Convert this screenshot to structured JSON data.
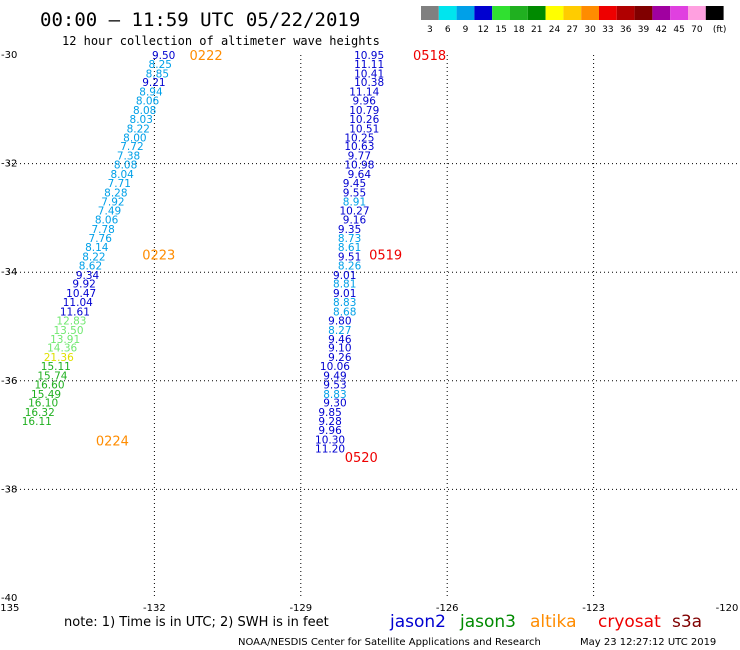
{
  "title": "00:00 — 11:59 UTC 05/22/2019",
  "subtitle": "12 hour collection of altimeter wave heights",
  "note": "note:  1) Time is in UTC; 2) SWH is in feet",
  "credit": "NOAA/NESDIS Center for Satellite Applications and Research",
  "timestamp": "May 23 12:27:12 UTC 2019",
  "unit_label": "(ft)",
  "color_scale": [
    {
      "label": "3",
      "color": "#808080"
    },
    {
      "label": "6",
      "color": "#00e5ee"
    },
    {
      "label": "9",
      "color": "#00a0e8"
    },
    {
      "label": "12",
      "color": "#0000d0"
    },
    {
      "label": "15",
      "color": "#30e030"
    },
    {
      "label": "18",
      "color": "#20b020"
    },
    {
      "label": "21",
      "color": "#008a00"
    },
    {
      "label": "24",
      "color": "#ffff00"
    },
    {
      "label": "27",
      "color": "#ffcc00"
    },
    {
      "label": "30",
      "color": "#ff8c00"
    },
    {
      "label": "33",
      "color": "#ee0000"
    },
    {
      "label": "36",
      "color": "#b00000"
    },
    {
      "label": "39",
      "color": "#800000"
    },
    {
      "label": "42",
      "color": "#a000a0"
    },
    {
      "label": "45",
      "color": "#e040e0"
    },
    {
      "label": "70",
      "color": "#ffa0e0"
    },
    {
      "label": "",
      "color": "#000000"
    }
  ],
  "satellites": [
    {
      "name": "jason2",
      "color": "#0000d0"
    },
    {
      "name": "jason3",
      "color": "#008a00"
    },
    {
      "name": "altika",
      "color": "#ff8c00"
    },
    {
      "name": "cryosat",
      "color": "#ee0000"
    },
    {
      "name": "s3a",
      "color": "#800000"
    }
  ],
  "chart_data": {
    "type": "scatter",
    "xlim": [
      -135,
      -120
    ],
    "ylim": [
      -40,
      -30
    ],
    "x_ticks": [
      -135,
      -132,
      -129,
      -126,
      -123,
      -120
    ],
    "y_ticks": [
      -30,
      -32,
      -34,
      -36,
      -38,
      -40
    ],
    "grid": true,
    "legend_placement": "bottom",
    "series": [
      {
        "name": "altika",
        "color": "#ff8c00",
        "time_labels": [
          {
            "text": "0222",
            "lon": -131.28,
            "lat": -30.0
          },
          {
            "text": "0223",
            "lon": -132.25,
            "lat": -33.67
          },
          {
            "text": "0224",
            "lon": -133.2,
            "lat": -37.1
          }
        ],
        "points": [
          {
            "lon": -131.81,
            "lat": -30.0,
            "swh": "9.50",
            "color": "#0000d0"
          },
          {
            "lon": -131.88,
            "lat": -30.17,
            "swh": "8.25",
            "color": "#00a0e8"
          },
          {
            "lon": -131.94,
            "lat": -30.34,
            "swh": "8.85",
            "color": "#00a0e8"
          },
          {
            "lon": -132.01,
            "lat": -30.5,
            "swh": "9.21",
            "color": "#0000d0"
          },
          {
            "lon": -132.07,
            "lat": -30.67,
            "swh": "8.94",
            "color": "#00a0e8"
          },
          {
            "lon": -132.14,
            "lat": -30.84,
            "swh": "8.06",
            "color": "#00a0e8"
          },
          {
            "lon": -132.2,
            "lat": -31.01,
            "swh": "8.08",
            "color": "#00a0e8"
          },
          {
            "lon": -132.27,
            "lat": -31.18,
            "swh": "8.03",
            "color": "#00a0e8"
          },
          {
            "lon": -132.33,
            "lat": -31.35,
            "swh": "8.22",
            "color": "#00a0e8"
          },
          {
            "lon": -132.4,
            "lat": -31.52,
            "swh": "8.00",
            "color": "#00a0e8"
          },
          {
            "lon": -132.46,
            "lat": -31.68,
            "swh": "7.72",
            "color": "#00a0e8"
          },
          {
            "lon": -132.53,
            "lat": -31.85,
            "swh": "7.38",
            "color": "#00a0e8"
          },
          {
            "lon": -132.59,
            "lat": -32.02,
            "swh": "8.08",
            "color": "#00a0e8"
          },
          {
            "lon": -132.66,
            "lat": -32.19,
            "swh": "8.04",
            "color": "#00a0e8"
          },
          {
            "lon": -132.72,
            "lat": -32.36,
            "swh": "7.71",
            "color": "#00a0e8"
          },
          {
            "lon": -132.79,
            "lat": -32.53,
            "swh": "8.28",
            "color": "#00a0e8"
          },
          {
            "lon": -132.85,
            "lat": -32.7,
            "swh": "7.92",
            "color": "#00a0e8"
          },
          {
            "lon": -132.92,
            "lat": -32.86,
            "swh": "7.49",
            "color": "#00a0e8"
          },
          {
            "lon": -132.98,
            "lat": -33.03,
            "swh": "8.06",
            "color": "#00a0e8"
          },
          {
            "lon": -133.05,
            "lat": -33.2,
            "swh": "7.78",
            "color": "#00a0e8"
          },
          {
            "lon": -133.11,
            "lat": -33.37,
            "swh": "7.76",
            "color": "#00a0e8"
          },
          {
            "lon": -133.18,
            "lat": -33.54,
            "swh": "8.14",
            "color": "#00a0e8"
          },
          {
            "lon": -133.24,
            "lat": -33.71,
            "swh": "8.22",
            "color": "#00a0e8"
          },
          {
            "lon": -133.31,
            "lat": -33.88,
            "swh": "8.62",
            "color": "#00a0e8"
          },
          {
            "lon": -133.37,
            "lat": -34.05,
            "swh": "9.34",
            "color": "#0000d0"
          },
          {
            "lon": -133.44,
            "lat": -34.21,
            "swh": "9.92",
            "color": "#0000d0"
          },
          {
            "lon": -133.5,
            "lat": -34.38,
            "swh": "10.47",
            "color": "#0000d0"
          },
          {
            "lon": -133.57,
            "lat": -34.55,
            "swh": "11.04",
            "color": "#0000d0"
          },
          {
            "lon": -133.63,
            "lat": -34.72,
            "swh": "11.61",
            "color": "#0000d0"
          },
          {
            "lon": -133.7,
            "lat": -34.89,
            "swh": "12.83",
            "color": "#70e870"
          },
          {
            "lon": -133.76,
            "lat": -35.06,
            "swh": "13.50",
            "color": "#70e870"
          },
          {
            "lon": -133.83,
            "lat": -35.23,
            "swh": "13.91",
            "color": "#70e870"
          },
          {
            "lon": -133.89,
            "lat": -35.39,
            "swh": "14.36",
            "color": "#70e870"
          },
          {
            "lon": -133.96,
            "lat": -35.56,
            "swh": "21.36",
            "color": "#e0e000"
          },
          {
            "lon": -134.02,
            "lat": -35.73,
            "swh": "15.11",
            "color": "#20b020"
          },
          {
            "lon": -134.09,
            "lat": -35.9,
            "swh": "15.74",
            "color": "#20b020"
          },
          {
            "lon": -134.15,
            "lat": -36.07,
            "swh": "16.60",
            "color": "#20b020"
          },
          {
            "lon": -134.22,
            "lat": -36.24,
            "swh": "15.49",
            "color": "#20b020"
          },
          {
            "lon": -134.28,
            "lat": -36.4,
            "swh": "16.10",
            "color": "#20b020"
          },
          {
            "lon": -134.35,
            "lat": -36.57,
            "swh": "16.32",
            "color": "#20b020"
          },
          {
            "lon": -134.41,
            "lat": -36.74,
            "swh": "16.11",
            "color": "#20b020"
          }
        ]
      },
      {
        "name": "cryosat",
        "color": "#ee0000",
        "time_labels": [
          {
            "text": "0518",
            "lon": -126.7,
            "lat": -30.0
          },
          {
            "text": "0519",
            "lon": -127.6,
            "lat": -33.67
          },
          {
            "text": "0520",
            "lon": -128.1,
            "lat": -37.4
          }
        ],
        "points": [
          {
            "lon": -127.6,
            "lat": -30.0,
            "swh": "10.95",
            "color": "#0000d0"
          },
          {
            "lon": -127.6,
            "lat": -30.17,
            "swh": "11.11",
            "color": "#0000d0"
          },
          {
            "lon": -127.6,
            "lat": -30.34,
            "swh": "10.41",
            "color": "#0000d0"
          },
          {
            "lon": -127.6,
            "lat": -30.5,
            "swh": "10.38",
            "color": "#0000d0"
          },
          {
            "lon": -127.7,
            "lat": -30.67,
            "swh": "11.14",
            "color": "#0000d0"
          },
          {
            "lon": -127.7,
            "lat": -30.84,
            "swh": "9.96",
            "color": "#0000d0"
          },
          {
            "lon": -127.7,
            "lat": -31.01,
            "swh": "10.79",
            "color": "#0000d0"
          },
          {
            "lon": -127.7,
            "lat": -31.18,
            "swh": "10.26",
            "color": "#0000d0"
          },
          {
            "lon": -127.7,
            "lat": -31.35,
            "swh": "10.51",
            "color": "#0000d0"
          },
          {
            "lon": -127.8,
            "lat": -31.52,
            "swh": "10.25",
            "color": "#0000d0"
          },
          {
            "lon": -127.8,
            "lat": -31.68,
            "swh": "10.63",
            "color": "#0000d0"
          },
          {
            "lon": -127.8,
            "lat": -31.85,
            "swh": "9.77",
            "color": "#0000d0"
          },
          {
            "lon": -127.8,
            "lat": -32.02,
            "swh": "10.98",
            "color": "#0000d0"
          },
          {
            "lon": -127.8,
            "lat": -32.19,
            "swh": "9.64",
            "color": "#0000d0"
          },
          {
            "lon": -127.9,
            "lat": -32.36,
            "swh": "9.45",
            "color": "#0000d0"
          },
          {
            "lon": -127.9,
            "lat": -32.53,
            "swh": "9.55",
            "color": "#0000d0"
          },
          {
            "lon": -127.9,
            "lat": -32.7,
            "swh": "8.91",
            "color": "#00a0e8"
          },
          {
            "lon": -127.9,
            "lat": -32.86,
            "swh": "10.27",
            "color": "#0000d0"
          },
          {
            "lon": -127.9,
            "lat": -33.03,
            "swh": "9.16",
            "color": "#0000d0"
          },
          {
            "lon": -128.0,
            "lat": -33.2,
            "swh": "9.35",
            "color": "#0000d0"
          },
          {
            "lon": -128.0,
            "lat": -33.37,
            "swh": "8.73",
            "color": "#00a0e8"
          },
          {
            "lon": -128.0,
            "lat": -33.54,
            "swh": "8.61",
            "color": "#00a0e8"
          },
          {
            "lon": -128.0,
            "lat": -33.71,
            "swh": "9.51",
            "color": "#0000d0"
          },
          {
            "lon": -128.0,
            "lat": -33.88,
            "swh": "8.26",
            "color": "#00a0e8"
          },
          {
            "lon": -128.1,
            "lat": -34.05,
            "swh": "9.01",
            "color": "#0000d0"
          },
          {
            "lon": -128.1,
            "lat": -34.21,
            "swh": "8.81",
            "color": "#00a0e8"
          },
          {
            "lon": -128.1,
            "lat": -34.38,
            "swh": "9.01",
            "color": "#0000d0"
          },
          {
            "lon": -128.1,
            "lat": -34.55,
            "swh": "8.83",
            "color": "#00a0e8"
          },
          {
            "lon": -128.1,
            "lat": -34.72,
            "swh": "8.68",
            "color": "#00a0e8"
          },
          {
            "lon": -128.2,
            "lat": -34.89,
            "swh": "9.80",
            "color": "#0000d0"
          },
          {
            "lon": -128.2,
            "lat": -35.06,
            "swh": "8.27",
            "color": "#00a0e8"
          },
          {
            "lon": -128.2,
            "lat": -35.23,
            "swh": "9.46",
            "color": "#0000d0"
          },
          {
            "lon": -128.2,
            "lat": -35.39,
            "swh": "9.10",
            "color": "#0000d0"
          },
          {
            "lon": -128.2,
            "lat": -35.56,
            "swh": "9.26",
            "color": "#0000d0"
          },
          {
            "lon": -128.3,
            "lat": -35.73,
            "swh": "10.06",
            "color": "#0000d0"
          },
          {
            "lon": -128.3,
            "lat": -35.9,
            "swh": "9.49",
            "color": "#0000d0"
          },
          {
            "lon": -128.3,
            "lat": -36.07,
            "swh": "9.53",
            "color": "#0000d0"
          },
          {
            "lon": -128.3,
            "lat": -36.24,
            "swh": "8.83",
            "color": "#00a0e8"
          },
          {
            "lon": -128.3,
            "lat": -36.4,
            "swh": "9.30",
            "color": "#0000d0"
          },
          {
            "lon": -128.4,
            "lat": -36.57,
            "swh": "9.85",
            "color": "#0000d0"
          },
          {
            "lon": -128.4,
            "lat": -36.74,
            "swh": "9.28",
            "color": "#0000d0"
          },
          {
            "lon": -128.4,
            "lat": -36.91,
            "swh": "9.96",
            "color": "#0000d0"
          },
          {
            "lon": -128.4,
            "lat": -37.08,
            "swh": "10.30",
            "color": "#0000d0"
          },
          {
            "lon": -128.4,
            "lat": -37.25,
            "swh": "11.20",
            "color": "#0000d0"
          }
        ]
      }
    ]
  }
}
